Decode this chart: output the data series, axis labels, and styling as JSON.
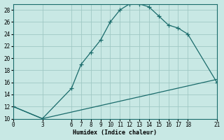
{
  "xlabel": "Humidex (Indice chaleur)",
  "background_color": "#c8e8e4",
  "line_color": "#1a6b6b",
  "grid_color": "#a0c8c4",
  "xlim": [
    0,
    21
  ],
  "ylim": [
    10,
    29
  ],
  "xticks": [
    0,
    3,
    6,
    7,
    8,
    9,
    10,
    11,
    12,
    13,
    14,
    15,
    16,
    17,
    18,
    21
  ],
  "yticks": [
    10,
    12,
    14,
    16,
    18,
    20,
    22,
    24,
    26,
    28
  ],
  "line1_x": [
    0,
    3,
    6,
    7,
    8,
    9,
    10,
    11,
    12,
    13,
    14,
    15,
    16,
    17,
    18,
    21
  ],
  "line1_y": [
    12.0,
    10.0,
    15.0,
    19.0,
    21.0,
    23.0,
    26.0,
    28.0,
    29.0,
    29.0,
    28.5,
    27.0,
    25.5,
    25.0,
    24.0,
    16.0
  ],
  "line2_x": [
    0,
    3,
    21
  ],
  "line2_y": [
    12.0,
    10.0,
    16.5
  ]
}
